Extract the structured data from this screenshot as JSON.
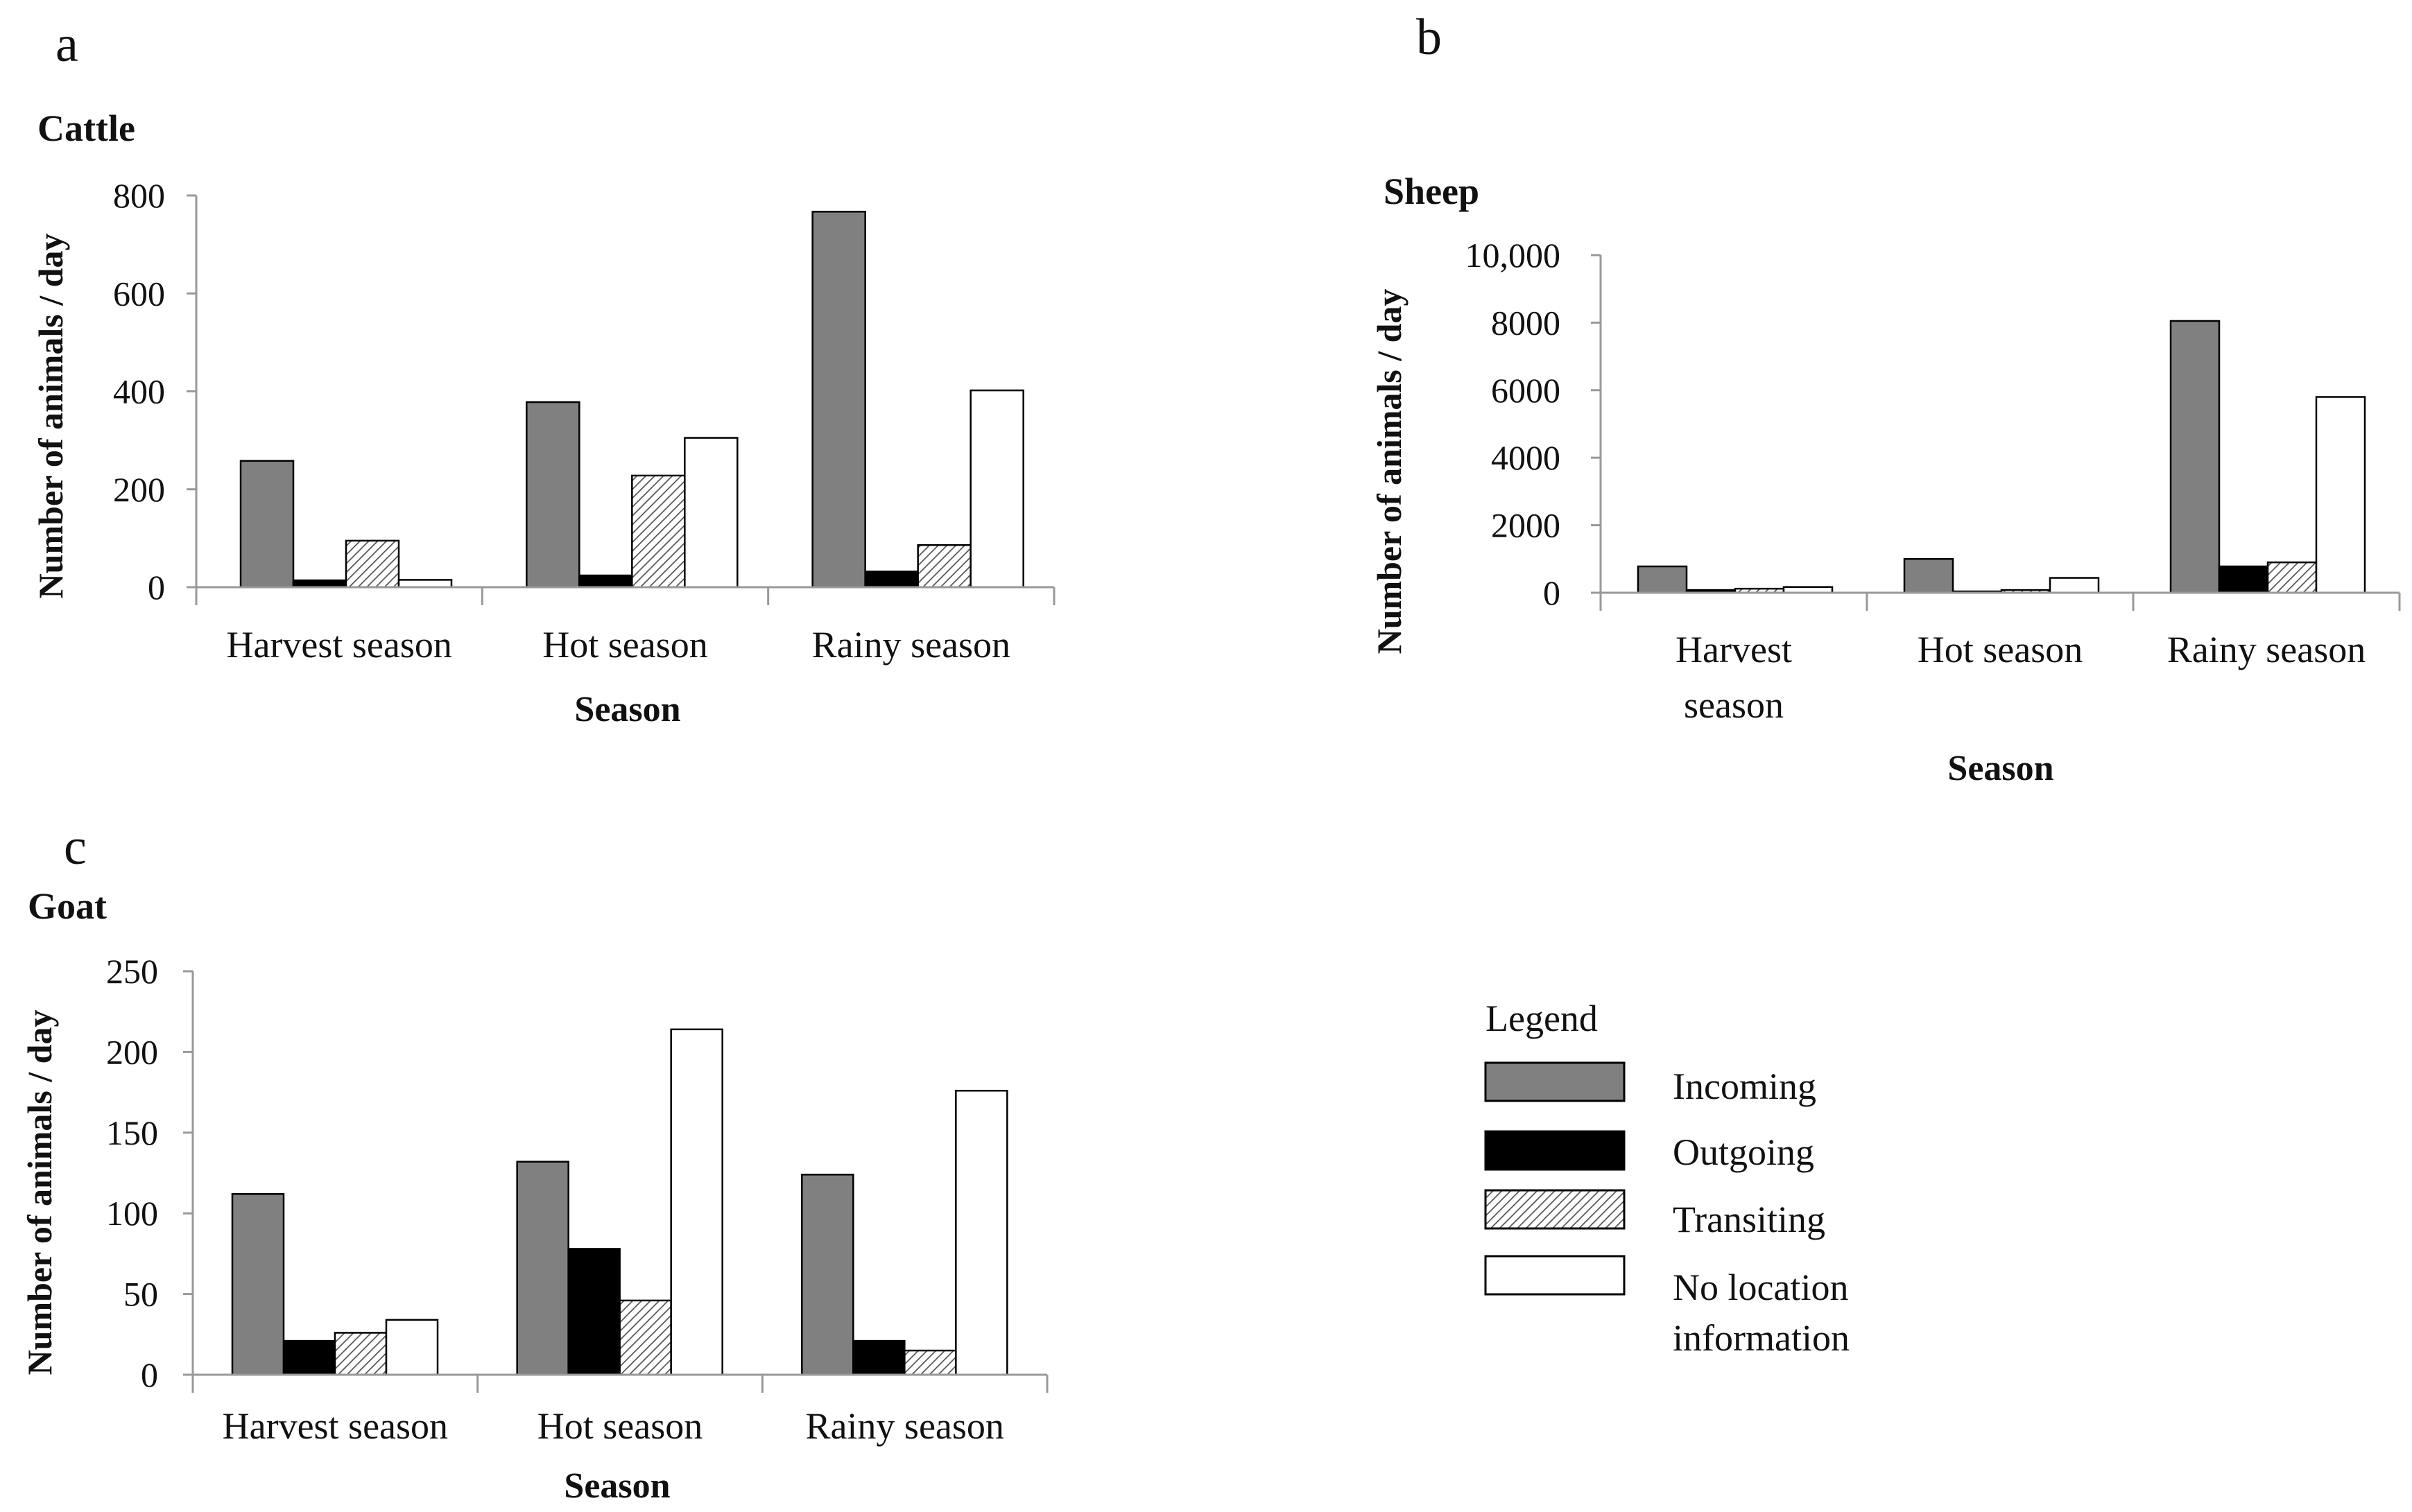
{
  "legend": {
    "title": "Legend",
    "items": [
      {
        "key": "incoming",
        "label_lines": [
          "Incoming"
        ]
      },
      {
        "key": "outgoing",
        "label_lines": [
          "Outgoing"
        ]
      },
      {
        "key": "transiting",
        "label_lines": [
          "Transiting"
        ]
      },
      {
        "key": "no_location",
        "label_lines": [
          "No location",
          "information"
        ]
      }
    ]
  },
  "colors": {
    "incoming": "#808080",
    "outgoing": "#000000",
    "transiting_line": "#555555",
    "no_location": "#ffffff",
    "axis": "#999999",
    "text": "#111111"
  },
  "chart_data": [
    {
      "id": "cattle",
      "panel": "a",
      "type": "bar",
      "title": "Cattle",
      "xlabel": "Season",
      "ylabel": "Number of animals / day",
      "categories": [
        "Harvest season",
        "Hot season",
        "Rainy season"
      ],
      "category_lines": [
        [
          "Harvest season"
        ],
        [
          "Hot season"
        ],
        [
          "Rainy season"
        ]
      ],
      "ylim": [
        0,
        800
      ],
      "yticks": [
        0,
        200,
        400,
        600,
        800
      ],
      "ytick_labels": [
        "0",
        "200",
        "400",
        "600",
        "800"
      ],
      "series": [
        {
          "name": "Incoming",
          "key": "incoming",
          "values": [
            258,
            378,
            767
          ]
        },
        {
          "name": "Outgoing",
          "key": "outgoing",
          "values": [
            14,
            24,
            32
          ]
        },
        {
          "name": "Transiting",
          "key": "transiting",
          "values": [
            95,
            228,
            86
          ]
        },
        {
          "name": "No location information",
          "key": "no_location",
          "values": [
            15,
            305,
            402
          ]
        }
      ]
    },
    {
      "id": "sheep",
      "panel": "b",
      "type": "bar",
      "title": "Sheep",
      "xlabel": "Season",
      "ylabel": "Number of animals / day",
      "categories": [
        "Harvest season",
        "Hot season",
        "Rainy season"
      ],
      "category_lines": [
        [
          "Harvest",
          "season"
        ],
        [
          "Hot season"
        ],
        [
          "Rainy season"
        ]
      ],
      "ylim": [
        0,
        10000
      ],
      "yticks": [
        0,
        2000,
        4000,
        6000,
        8000,
        10000
      ],
      "ytick_labels": [
        "0",
        "2000",
        "4000",
        "6000",
        "8000",
        "10,000"
      ],
      "series": [
        {
          "name": "Incoming",
          "key": "incoming",
          "values": [
            780,
            1000,
            8050
          ]
        },
        {
          "name": "Outgoing",
          "key": "outgoing",
          "values": [
            80,
            40,
            780
          ]
        },
        {
          "name": "Transiting",
          "key": "transiting",
          "values": [
            120,
            80,
            900
          ]
        },
        {
          "name": "No location information",
          "key": "no_location",
          "values": [
            170,
            440,
            5800
          ]
        }
      ]
    },
    {
      "id": "goat",
      "panel": "c",
      "type": "bar",
      "title": "Goat",
      "xlabel": "Season",
      "ylabel": "Number of animals / day",
      "categories": [
        "Harvest season",
        "Hot season",
        "Rainy season"
      ],
      "category_lines": [
        [
          "Harvest season"
        ],
        [
          "Hot season"
        ],
        [
          "Rainy season"
        ]
      ],
      "ylim": [
        0,
        250
      ],
      "yticks": [
        0,
        50,
        100,
        150,
        200,
        250
      ],
      "ytick_labels": [
        "0",
        "50",
        "100",
        "150",
        "200",
        "250"
      ],
      "series": [
        {
          "name": "Incoming",
          "key": "incoming",
          "values": [
            112,
            132,
            124
          ]
        },
        {
          "name": "Outgoing",
          "key": "outgoing",
          "values": [
            21,
            78,
            21
          ]
        },
        {
          "name": "Transiting",
          "key": "transiting",
          "values": [
            26,
            46,
            15
          ]
        },
        {
          "name": "No location information",
          "key": "no_location",
          "values": [
            34,
            214,
            176
          ]
        }
      ]
    }
  ]
}
